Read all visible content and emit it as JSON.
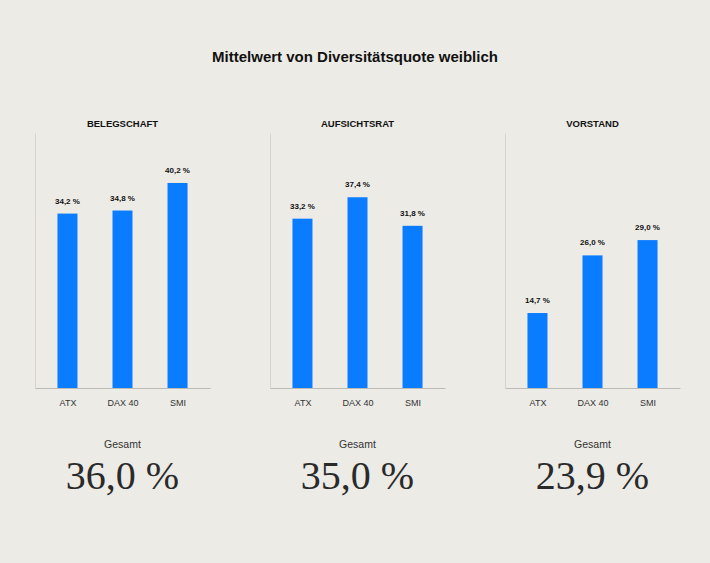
{
  "title": "Mittelwert von Diversitätsquote weiblich",
  "chart_data": [
    {
      "type": "bar",
      "title": "BELEGSCHAFT",
      "categories": [
        "ATX",
        "DAX 40",
        "SMI"
      ],
      "values": [
        34.2,
        34.8,
        40.2
      ],
      "value_labels": [
        "34,2 %",
        "34,8 %",
        "40,2 %"
      ],
      "color": "#0a7cff",
      "ylim": [
        0,
        50
      ],
      "data_labels": true,
      "tick_labels": "x",
      "grid": false,
      "annotation": {
        "label": "Gesamt",
        "value": 36.0,
        "value_label": "36,0 %"
      }
    },
    {
      "type": "bar",
      "title": "AUFSICHTSRAT",
      "categories": [
        "ATX",
        "DAX 40",
        "SMI"
      ],
      "values": [
        33.2,
        37.4,
        31.8
      ],
      "value_labels": [
        "33,2 %",
        "37,4 %",
        "31,8 %"
      ],
      "color": "#0a7cff",
      "ylim": [
        0,
        50
      ],
      "data_labels": true,
      "tick_labels": "x",
      "grid": false,
      "annotation": {
        "label": "Gesamt",
        "value": 35.0,
        "value_label": "35,0 %"
      }
    },
    {
      "type": "bar",
      "title": "VORSTAND",
      "categories": [
        "ATX",
        "DAX 40",
        "SMI"
      ],
      "values": [
        14.7,
        26.0,
        29.0
      ],
      "value_labels": [
        "14,7 %",
        "26,0 %",
        "29,0 %"
      ],
      "color": "#0a7cff",
      "ylim": [
        0,
        50
      ],
      "data_labels": true,
      "tick_labels": "x",
      "grid": false,
      "annotation": {
        "label": "Gesamt",
        "value": 23.9,
        "value_label": "23,9 %"
      }
    }
  ]
}
